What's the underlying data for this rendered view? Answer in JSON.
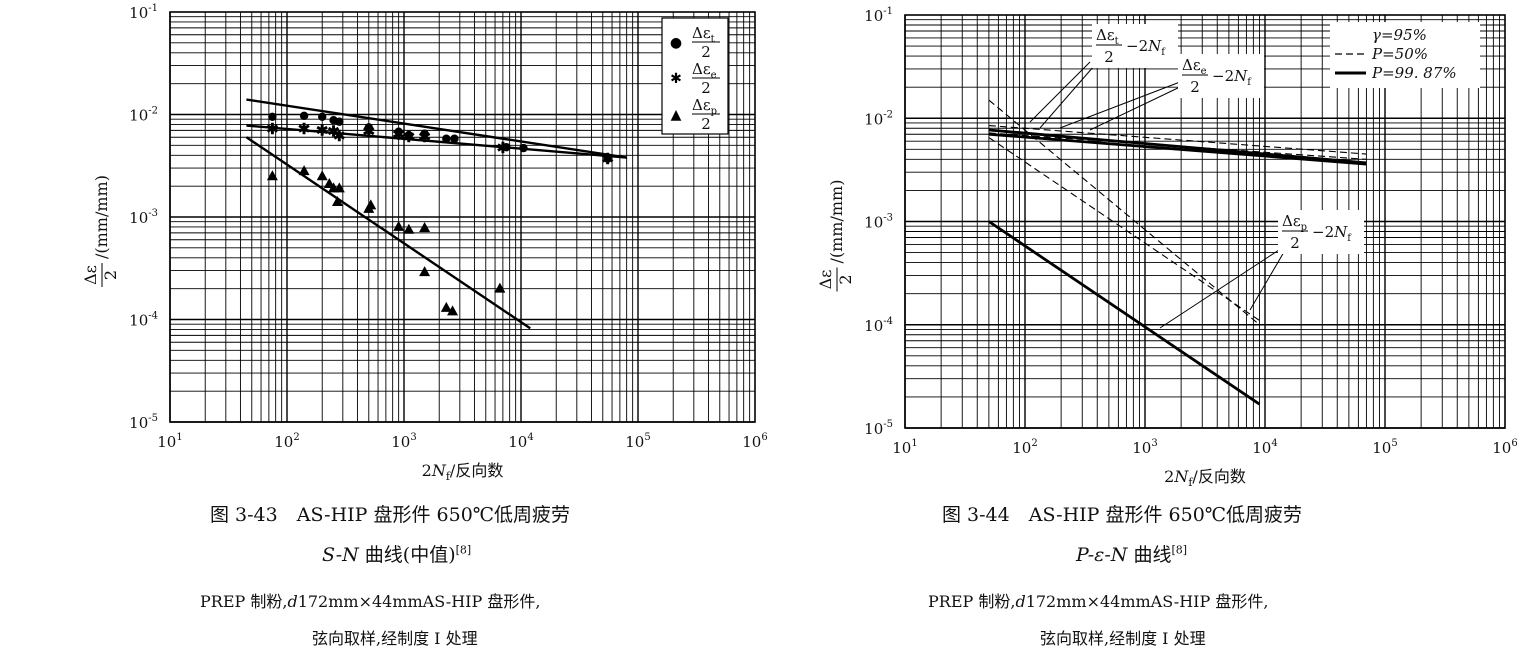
{
  "chart_data": [
    {
      "type": "scatter",
      "title": "",
      "x_scale": "log",
      "y_scale": "log",
      "xlim": [
        10,
        1000000
      ],
      "ylim": [
        1e-05,
        0.1
      ],
      "grid": true,
      "legend_position": "top-right",
      "x_ticks": [
        "10",
        "10",
        "10",
        "10",
        "10",
        "10"
      ],
      "x_tick_exps": [
        "1",
        "2",
        "3",
        "4",
        "5",
        "6"
      ],
      "y_ticks": [
        "10",
        "10",
        "10",
        "10",
        "10"
      ],
      "y_tick_exps": [
        "-1",
        "-2",
        "-3",
        "-4",
        "-5"
      ],
      "xlabel": {
        "pre": "2",
        "var": "N",
        "sub": "f",
        "post": "/反向数"
      },
      "ylabel": {
        "num": "Δε",
        "den": "2",
        "unit": "/(mm/mm)"
      },
      "legend": [
        {
          "num": "Δε",
          "sub": "t",
          "den": "2",
          "marker": "●"
        },
        {
          "num": "Δε",
          "sub": "e",
          "den": "2",
          "marker": "✱"
        },
        {
          "num": "Δε",
          "sub": "p",
          "den": "2",
          "marker": "▲"
        }
      ],
      "series": [
        {
          "key": "t",
          "marker": "circle",
          "points": [
            [
              75,
              0.0095
            ],
            [
              140,
              0.0097
            ],
            [
              200,
              0.0095
            ],
            [
              250,
              0.0088
            ],
            [
              280,
              0.0085
            ],
            [
              500,
              0.0075
            ],
            [
              900,
              0.0068
            ],
            [
              1100,
              0.0063
            ],
            [
              1500,
              0.0065
            ],
            [
              2300,
              0.0058
            ],
            [
              2700,
              0.0058
            ],
            [
              7500,
              0.0048
            ],
            [
              10500,
              0.0047
            ],
            [
              55000,
              0.0037
            ]
          ],
          "fit": [
            [
              45,
              0.014
            ],
            [
              80000,
              0.0038
            ]
          ]
        },
        {
          "key": "e",
          "marker": "star",
          "points": [
            [
              75,
              0.0072
            ],
            [
              140,
              0.0072
            ],
            [
              200,
              0.007
            ],
            [
              250,
              0.0068
            ],
            [
              280,
              0.0062
            ],
            [
              500,
              0.0068
            ],
            [
              900,
              0.0064
            ],
            [
              1100,
              0.006
            ],
            [
              1500,
              0.006
            ],
            [
              7000,
              0.0047
            ],
            [
              55000,
              0.0037
            ]
          ],
          "fit": [
            [
              45,
              0.0078
            ],
            [
              80000,
              0.0038
            ]
          ]
        },
        {
          "key": "p",
          "marker": "triangle",
          "points": [
            [
              75,
              0.0025
            ],
            [
              140,
              0.0028
            ],
            [
              200,
              0.0025
            ],
            [
              230,
              0.0021
            ],
            [
              250,
              0.0019
            ],
            [
              270,
              0.0014
            ],
            [
              280,
              0.0019
            ],
            [
              500,
              0.0012
            ],
            [
              520,
              0.0013
            ],
            [
              900,
              0.0008
            ],
            [
              1100,
              0.00075
            ],
            [
              1500,
              0.00078
            ],
            [
              1500,
              0.00029
            ],
            [
              2300,
              0.00013
            ],
            [
              2600,
              0.00012
            ],
            [
              6600,
              0.0002
            ]
          ],
          "fit": [
            [
              45,
              0.006
            ],
            [
              12000,
              8.2e-05
            ]
          ]
        }
      ]
    },
    {
      "type": "line",
      "title": "",
      "x_scale": "log",
      "y_scale": "log",
      "xlim": [
        10,
        1000000
      ],
      "ylim": [
        1e-05,
        0.1
      ],
      "grid": true,
      "legend_position": "top-right",
      "x_ticks": [
        "10",
        "10",
        "10",
        "10",
        "10",
        "10"
      ],
      "x_tick_exps": [
        "1",
        "2",
        "3",
        "4",
        "5",
        "6"
      ],
      "y_ticks": [
        "10",
        "10",
        "10",
        "10",
        "10"
      ],
      "y_tick_exps": [
        "-1",
        "-2",
        "-3",
        "-4",
        "-5"
      ],
      "xlabel": {
        "pre": "2",
        "var": "N",
        "sub": "f",
        "post": "/反向数"
      },
      "ylabel": {
        "num": "Δε",
        "den": "2",
        "unit": "/(mm/mm)"
      },
      "legend": [
        {
          "label": "γ=95%",
          "style": "none"
        },
        {
          "label": "P=50%",
          "style": "dashed"
        },
        {
          "label": "P=99. 87%",
          "style": "solid"
        }
      ],
      "annotations": [
        {
          "num": "Δε",
          "sub": "t",
          "den": "2",
          "post": "−2N",
          "post_sub": "f"
        },
        {
          "num": "Δε",
          "sub": "e",
          "den": "2",
          "post": "−2N",
          "post_sub": "f"
        },
        {
          "num": "Δε",
          "sub": "p",
          "den": "2",
          "post": "−2N",
          "post_sub": "f"
        }
      ],
      "series": [
        {
          "name": "Δεt/2 P=50%",
          "style": "dashed",
          "points": [
            [
              50,
              0.0085
            ],
            [
              70000,
              0.0045
            ]
          ]
        },
        {
          "name": "Δεt/2 P=99.87%",
          "style": "solid",
          "points": [
            [
              50,
              0.0077
            ],
            [
              70000,
              0.0037
            ]
          ]
        },
        {
          "name": "Δεe/2 P=50%",
          "style": "dashed",
          "points": [
            [
              50,
              0.0072
            ],
            [
              70000,
              0.004
            ]
          ]
        },
        {
          "name": "Δεe/2 P=99.87%",
          "style": "solid",
          "points": [
            [
              50,
              0.007
            ],
            [
              70000,
              0.0036
            ]
          ]
        },
        {
          "name": "Δεp/2 P=50% (upper)",
          "style": "dashed",
          "points": [
            [
              50,
              0.015
            ],
            [
              9000,
              0.0001
            ]
          ]
        },
        {
          "name": "Δεp/2 P=50% (lower)",
          "style": "dashed",
          "points": [
            [
              50,
              0.0065
            ],
            [
              9000,
              0.00011
            ]
          ]
        },
        {
          "name": "Δεp/2 P=99.87%",
          "style": "solid",
          "points": [
            [
              50,
              0.001
            ],
            [
              9000,
              1.7e-05
            ]
          ]
        }
      ]
    }
  ],
  "captions": {
    "left": {
      "line1": "图 3-43　AS-HIP 盘形件 650℃低周疲劳",
      "line2_var": "S-N",
      "line2_text": " 曲线(中值)",
      "line2_ref": "[8]",
      "line3_pre": "PREP 制粉,",
      "line3_var": "d",
      "line3_post": "172mm×44mmAS-HIP 盘形件,",
      "line4": "弦向取样,经制度 Ⅰ 处理"
    },
    "right": {
      "line1": "图 3-44　AS-HIP 盘形件 650℃低周疲劳",
      "line2_var": "P-ε-N",
      "line2_text": " 曲线",
      "line2_ref": "[8]",
      "line3_pre": "PREP 制粉,",
      "line3_var": "d",
      "line3_post": "172mm×44mmAS-HIP 盘形件,",
      "line4": "弦向取样,经制度 Ⅰ 处理"
    }
  }
}
